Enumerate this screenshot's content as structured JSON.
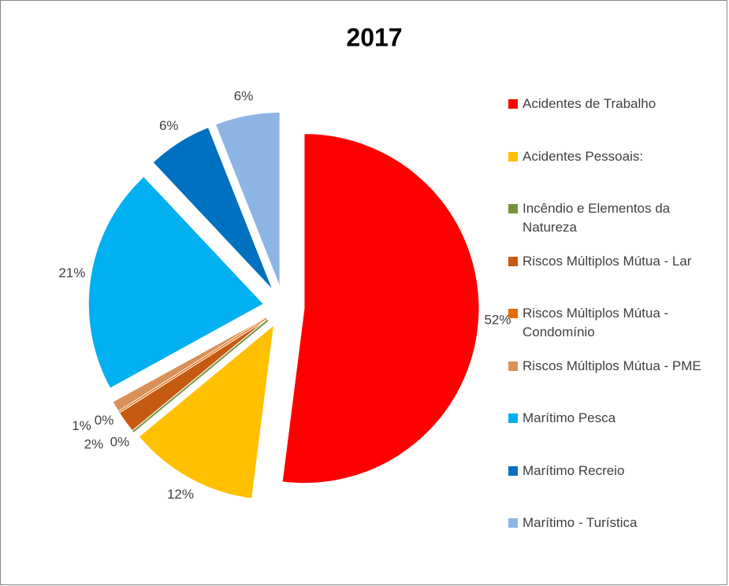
{
  "chart_data": {
    "type": "pie",
    "title": "2017",
    "categories": [
      "Acidentes de Trabalho",
      "Acidentes Pessoais:",
      "Incêndio e Elementos da Natureza",
      "Riscos Múltiplos Mútua - Lar",
      "Riscos Múltiplos Mútua - Condomínio",
      "Riscos Múltiplos Mútua - PME",
      "Marítimo Pesca",
      "Marítimo Recreio",
      "Marítimo - Turística"
    ],
    "values": [
      52,
      12,
      0,
      2,
      0,
      1,
      21,
      6,
      6
    ],
    "value_labels": [
      "52%",
      "12%",
      "0%",
      "2%",
      "0%",
      "1%",
      "21%",
      "6%",
      "6%"
    ],
    "colors": [
      "#ff0000",
      "#ffc000",
      "#77933c",
      "#c55a11",
      "#e46c0a",
      "#d99058",
      "#00b0f0",
      "#0070c0",
      "#8eb4e3"
    ],
    "legend": "right"
  }
}
